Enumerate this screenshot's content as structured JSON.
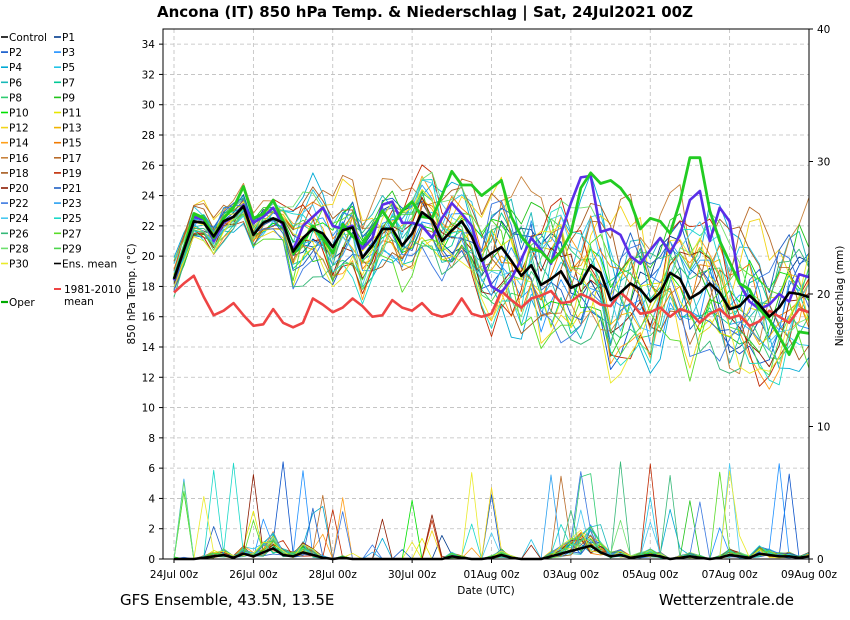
{
  "chart_data": {
    "type": "line",
    "title": "Ancona  (IT)  850 hPa Temp. & Niederschlag | Sat, 24Jul2021 00Z",
    "ylabel": "850 hPa Temp. (°C)",
    "y2label": "Niederschlag (mm)",
    "xlabel": "Date (UTC)",
    "ylim": [
      0,
      35
    ],
    "y2lim": [
      0,
      40
    ],
    "yticks": [
      0,
      2,
      4,
      6,
      8,
      10,
      12,
      14,
      16,
      18,
      20,
      22,
      24,
      26,
      28,
      30,
      32,
      34
    ],
    "y2ticks": [
      0,
      10,
      20,
      30,
      40
    ],
    "x_steps": 64,
    "x_step_hours": 6,
    "xtick_labels": [
      "24Jul 00z",
      "26Jul 00z",
      "28Jul 00z",
      "30Jul 00z",
      "01Aug 00z",
      "03Aug 00z",
      "05Aug 00z",
      "07Aug 00z",
      "09Aug 00z"
    ],
    "footer_left": "GFS Ensemble, 43.5N, 13.5E",
    "footer_right": "Wetterzentrale.de",
    "legend": [
      {
        "name": "Control",
        "color": "#000000"
      },
      {
        "name": "P1",
        "color": "#003a8c"
      },
      {
        "name": "P2",
        "color": "#0a52c9"
      },
      {
        "name": "P3",
        "color": "#1e90ff"
      },
      {
        "name": "P4",
        "color": "#00a9d4"
      },
      {
        "name": "P5",
        "color": "#22c3e6"
      },
      {
        "name": "P6",
        "color": "#18b8b8"
      },
      {
        "name": "P7",
        "color": "#00c896"
      },
      {
        "name": "P8",
        "color": "#2ecc71"
      },
      {
        "name": "P9",
        "color": "#22c41a"
      },
      {
        "name": "P10",
        "color": "#00e000"
      },
      {
        "name": "P11",
        "color": "#e6e600"
      },
      {
        "name": "P12",
        "color": "#f2d51a"
      },
      {
        "name": "P13",
        "color": "#f0b400"
      },
      {
        "name": "P14",
        "color": "#ff9f1a"
      },
      {
        "name": "P15",
        "color": "#f07a00"
      },
      {
        "name": "P16",
        "color": "#c8823c"
      },
      {
        "name": "P17",
        "color": "#b86a28"
      },
      {
        "name": "P18",
        "color": "#a55a1e"
      },
      {
        "name": "P19",
        "color": "#c02800"
      },
      {
        "name": "P20",
        "color": "#8b1a00"
      },
      {
        "name": "P21",
        "color": "#1f5fc4"
      },
      {
        "name": "P22",
        "color": "#3a78e0"
      },
      {
        "name": "P23",
        "color": "#2aa0f0"
      },
      {
        "name": "P24",
        "color": "#48c8f0"
      },
      {
        "name": "P25",
        "color": "#1ad8c8"
      },
      {
        "name": "P26",
        "color": "#36b878"
      },
      {
        "name": "P27",
        "color": "#5adc28"
      },
      {
        "name": "P28",
        "color": "#6ee06e"
      },
      {
        "name": "P29",
        "color": "#4cd64c"
      },
      {
        "name": "P30",
        "color": "#eaea2a"
      },
      {
        "name": "Ens. mean",
        "color": "#000000"
      },
      {
        "name": "1981-2010 mean",
        "color": "#ee4444"
      },
      {
        "name": "Oper",
        "color": "#00aa00"
      }
    ],
    "series_key": [
      {
        "name": "Oper",
        "color": "#22cc22"
      },
      {
        "name": "Control",
        "color": "#5a2ee8"
      },
      {
        "name": "Ens. mean",
        "color": "#000000"
      },
      {
        "name": "1981-2010 mean",
        "color": "#ee4444"
      }
    ],
    "oper": [
      18.5,
      20.5,
      22.8,
      22.5,
      21.2,
      22.5,
      23.2,
      24.6,
      22.5,
      22.8,
      23.7,
      22.3,
      20.2,
      21.0,
      22.0,
      21.2,
      20.2,
      22.1,
      21.3,
      20.8,
      21.8,
      23.0,
      22.0,
      23.0,
      23.6,
      22.6,
      22.5,
      24.0,
      25.6,
      24.7,
      24.7,
      24.0,
      24.5,
      25.0,
      22.6,
      21.3,
      20.5,
      20.3,
      19.6,
      20.3,
      21.5,
      24.5,
      25.5,
      24.8,
      25.0,
      24.5,
      23.6,
      21.8,
      22.5,
      22.3,
      21.5,
      23.6,
      26.5,
      26.5,
      23.0,
      21.0,
      19.6,
      18.2,
      17.8,
      16.5,
      15.8,
      14.7,
      13.5,
      15.0,
      14.9
    ],
    "control": [
      18.4,
      20.4,
      22.6,
      22.4,
      21.0,
      22.2,
      22.6,
      23.4,
      22.2,
      22.6,
      23.2,
      22.0,
      20.4,
      22.0,
      22.6,
      23.2,
      22.0,
      21.8,
      22.0,
      20.5,
      21.2,
      23.4,
      23.6,
      22.2,
      22.2,
      22.0,
      21.2,
      22.5,
      23.5,
      22.8,
      22.0,
      19.8,
      18.0,
      17.6,
      18.5,
      19.8,
      21.2,
      20.4,
      19.5,
      21.5,
      23.5,
      25.2,
      25.3,
      21.6,
      21.8,
      21.4,
      20.0,
      19.5,
      20.4,
      21.2,
      20.2,
      21.4,
      23.7,
      24.3,
      21.0,
      23.2,
      22.3,
      18.2,
      17.0,
      16.5,
      16.8,
      17.5,
      17.0,
      18.8,
      18.6
    ],
    "ens_mean": [
      18.5,
      20.4,
      22.3,
      22.2,
      21.3,
      22.3,
      22.6,
      23.3,
      21.4,
      22.2,
      22.5,
      22.2,
      20.3,
      21.2,
      21.8,
      21.5,
      20.6,
      21.7,
      21.9,
      19.9,
      20.7,
      21.8,
      21.8,
      20.7,
      21.5,
      22.9,
      22.4,
      21.0,
      21.7,
      22.3,
      21.3,
      19.7,
      20.2,
      20.6,
      19.7,
      18.7,
      19.4,
      18.1,
      18.5,
      19.0,
      17.9,
      18.2,
      19.4,
      18.9,
      17.1,
      17.6,
      18.2,
      17.8,
      17.0,
      17.6,
      18.9,
      18.5,
      17.2,
      17.6,
      18.2,
      17.6,
      16.5,
      16.7,
      17.4,
      16.8,
      16.0,
      16.6,
      17.6,
      17.5,
      17.3
    ],
    "clim": [
      17.6,
      18.2,
      18.7,
      17.3,
      16.1,
      16.4,
      16.9,
      16.1,
      15.4,
      15.5,
      16.5,
      15.6,
      15.3,
      15.6,
      17.2,
      16.8,
      16.3,
      16.6,
      17.2,
      16.7,
      16.0,
      16.1,
      17.1,
      16.6,
      16.4,
      16.9,
      16.2,
      16.0,
      16.2,
      17.2,
      16.2,
      16.0,
      16.2,
      17.7,
      17.1,
      16.6,
      17.2,
      17.4,
      17.7,
      16.9,
      17.0,
      17.5,
      17.2,
      16.8,
      16.7,
      17.6,
      17.0,
      16.2,
      16.3,
      16.6,
      16.0,
      16.5,
      16.3,
      15.6,
      16.2,
      16.5,
      15.9,
      16.1,
      15.4,
      15.7,
      16.4,
      16.0,
      15.6,
      16.5,
      16.3
    ],
    "precip_mean_mm": [
      0,
      0,
      0,
      0.1,
      0.2,
      0.3,
      0.1,
      0.4,
      0.2,
      0.5,
      0.8,
      0.3,
      0.2,
      0.5,
      0.3,
      0.1,
      0,
      0.1,
      0,
      0,
      0,
      0,
      0,
      0,
      0,
      0,
      0,
      0,
      0.2,
      0.1,
      0,
      0,
      0.1,
      0.3,
      0.1,
      0,
      0,
      0,
      0.2,
      0.4,
      0.6,
      0.8,
      1.0,
      0.5,
      0.2,
      0.3,
      0.1,
      0.2,
      0.3,
      0.2,
      0,
      0.1,
      0.2,
      0.1,
      0,
      0.1,
      0.3,
      0.2,
      0.1,
      0.4,
      0.3,
      0.2,
      0.2,
      0.1,
      0.2
    ]
  }
}
